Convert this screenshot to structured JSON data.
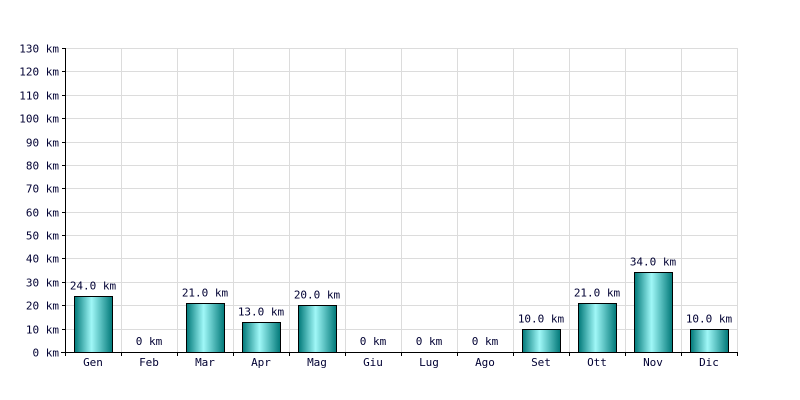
{
  "chart_data": {
    "type": "bar",
    "categories": [
      "Gen",
      "Feb",
      "Mar",
      "Apr",
      "Mag",
      "Giu",
      "Lug",
      "Ago",
      "Set",
      "Ott",
      "Nov",
      "Dic"
    ],
    "values": [
      24,
      0,
      21,
      13,
      20,
      0,
      0,
      0,
      10,
      21,
      34,
      10
    ],
    "data_labels": [
      "24.0 km",
      "0 km",
      "21.0 km",
      "13.0 km",
      "20.0 km",
      "0 km",
      "0 km",
      "0 km",
      "10.0 km",
      "21.0 km",
      "34.0 km",
      "10.0 km"
    ],
    "y_ticks": [
      0,
      10,
      20,
      30,
      40,
      50,
      60,
      70,
      80,
      90,
      100,
      110,
      120,
      130
    ],
    "y_tick_labels": [
      "0 km",
      "10 km",
      "20 km",
      "30 km",
      "40 km",
      "50 km",
      "60 km",
      "70 km",
      "80 km",
      "90 km",
      "100 km",
      "110 km",
      "120 km",
      "130 km"
    ],
    "ylim": [
      0,
      130
    ],
    "grid": true,
    "title": "",
    "xlabel": "",
    "ylabel": "",
    "bar_color": "#00c8c8",
    "bar_highlight_color": "#a0f8f8",
    "bar_shadow_color": "#007878"
  }
}
